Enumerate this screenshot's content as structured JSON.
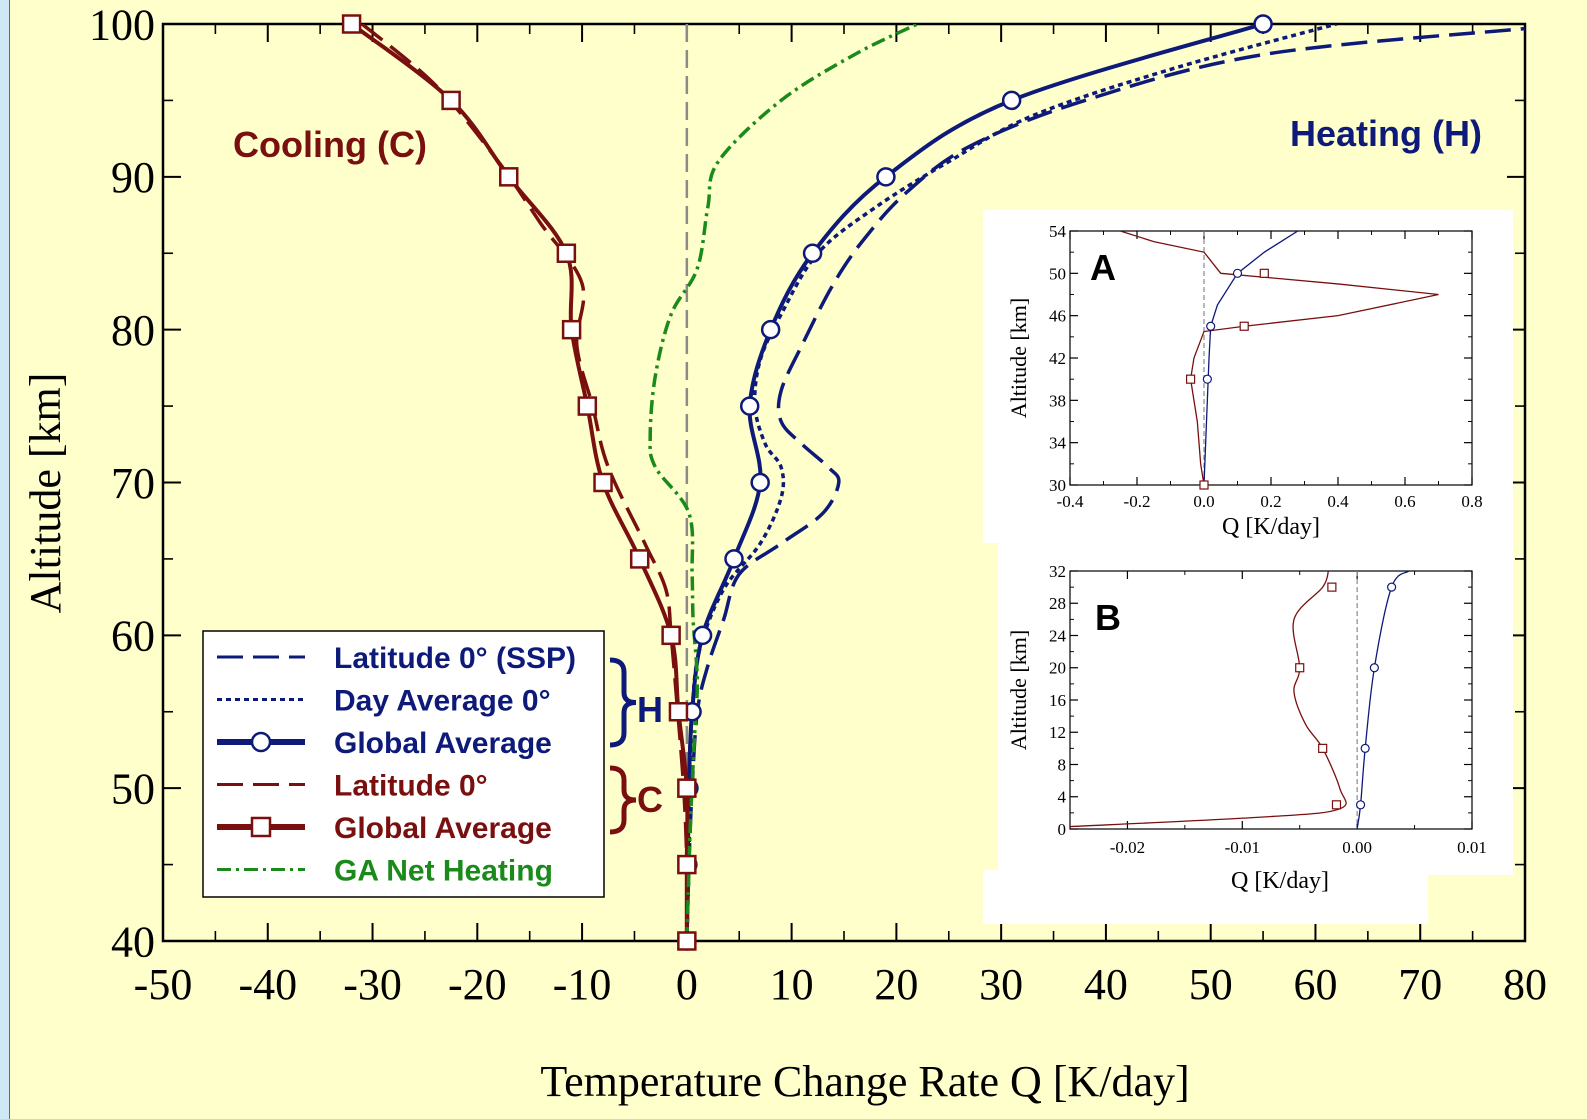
{
  "colors": {
    "background": "#ffffcc",
    "page_edge": "#cfe8f6",
    "heating": "#0d1a7a",
    "cooling": "#7a0f0f",
    "net": "#1a8a1a",
    "zero_line": "#8a8a8a"
  },
  "annotations": {
    "cooling": "Cooling (C)",
    "heating": "Heating (H)",
    "brace_h": "H",
    "brace_c": "C"
  },
  "chart_data": [
    {
      "type": "line",
      "xlabel": "Temperature Change Rate Q [K/day]",
      "ylabel": "Altitude [km]",
      "xlim": [
        -50,
        80
      ],
      "ylim": [
        40,
        100
      ],
      "xticks": [
        -50,
        -40,
        -30,
        -20,
        -10,
        0,
        10,
        20,
        30,
        40,
        50,
        60,
        70,
        80
      ],
      "yticks": [
        40,
        50,
        60,
        70,
        80,
        90,
        100
      ],
      "legend_position": "bottom-left",
      "grid": false,
      "series": [
        {
          "name": "Latitude 0° (SSP)",
          "style": "long-dash",
          "color": "#0d1a7a",
          "marker": "none",
          "points": [
            [
              0,
              40
            ],
            [
              0.2,
              45
            ],
            [
              0.5,
              50
            ],
            [
              1,
              55
            ],
            [
              2,
              58
            ],
            [
              3.5,
              61
            ],
            [
              5,
              64
            ],
            [
              9,
              66
            ],
            [
              13,
              68
            ],
            [
              14.5,
              70
            ],
            [
              13.5,
              71
            ],
            [
              11,
              72.5
            ],
            [
              9,
              74
            ],
            [
              9,
              76
            ],
            [
              11,
              79
            ],
            [
              14,
              83
            ],
            [
              17,
              86
            ],
            [
              21,
              89
            ],
            [
              27,
              92
            ],
            [
              38,
              95
            ],
            [
              55,
              98
            ],
            [
              80,
              99.7
            ]
          ]
        },
        {
          "name": "Day Average 0°",
          "style": "dotted",
          "color": "#0d1a7a",
          "marker": "none",
          "points": [
            [
              0,
              40
            ],
            [
              0.2,
              45
            ],
            [
              0.3,
              50
            ],
            [
              0.5,
              55
            ],
            [
              1.2,
              59
            ],
            [
              3.5,
              63
            ],
            [
              7,
              66
            ],
            [
              9,
              69
            ],
            [
              9,
              71
            ],
            [
              7.5,
              72.5
            ],
            [
              6.5,
              75
            ],
            [
              7,
              78
            ],
            [
              9,
              81
            ],
            [
              12.5,
              85
            ],
            [
              18,
              88
            ],
            [
              25,
              91
            ],
            [
              33,
              94
            ],
            [
              46,
              97
            ],
            [
              62,
              100
            ]
          ]
        },
        {
          "name": "Global Average",
          "style": "solid",
          "color": "#0d1a7a",
          "marker": "circle",
          "points": [
            [
              0,
              40
            ],
            [
              0.1,
              45
            ],
            [
              0.2,
              50
            ],
            [
              0.5,
              55
            ],
            [
              1.5,
              60
            ],
            [
              4.5,
              65
            ],
            [
              7,
              70
            ],
            [
              6,
              75
            ],
            [
              8,
              80
            ],
            [
              12,
              85
            ],
            [
              19,
              90
            ],
            [
              31,
              95
            ],
            [
              55,
              100
            ]
          ]
        },
        {
          "name": "Latitude 0°",
          "style": "long-dash",
          "color": "#7a0f0f",
          "marker": "none",
          "points": [
            [
              -31,
              100
            ],
            [
              -24,
              96
            ],
            [
              -18,
              91
            ],
            [
              -14,
              87
            ],
            [
              -10,
              83
            ],
            [
              -10.5,
              79
            ],
            [
              -9,
              75
            ],
            [
              -7.5,
              71
            ],
            [
              -4,
              66
            ],
            [
              -2,
              63
            ],
            [
              -1.5,
              60
            ],
            [
              -1,
              56
            ],
            [
              -0.3,
              50
            ],
            [
              0,
              45
            ],
            [
              0,
              40
            ]
          ]
        },
        {
          "name": "Global Average",
          "style": "solid",
          "color": "#7a0f0f",
          "marker": "square",
          "points": [
            [
              -32,
              100
            ],
            [
              -22.5,
              95
            ],
            [
              -17,
              90
            ],
            [
              -11.5,
              85
            ],
            [
              -11,
              80
            ],
            [
              -9.5,
              75
            ],
            [
              -8,
              70
            ],
            [
              -4.5,
              65
            ],
            [
              -1.5,
              60
            ],
            [
              -0.8,
              55
            ],
            [
              0,
              50
            ],
            [
              0,
              45
            ],
            [
              0,
              40
            ]
          ]
        },
        {
          "name": "GA Net Heating",
          "style": "dash-dot",
          "color": "#1a8a1a",
          "marker": "none",
          "points": [
            [
              0,
              40
            ],
            [
              0.3,
              47
            ],
            [
              0.7,
              53
            ],
            [
              1,
              57
            ],
            [
              0.6,
              61
            ],
            [
              0.5,
              64
            ],
            [
              0.2,
              68
            ],
            [
              -3,
              71
            ],
            [
              -3.5,
              73
            ],
            [
              -3,
              77
            ],
            [
              -1.5,
              81
            ],
            [
              1,
              84
            ],
            [
              2,
              88
            ],
            [
              3,
              91
            ],
            [
              9,
              95
            ],
            [
              16,
              98
            ],
            [
              22,
              100
            ]
          ]
        }
      ]
    },
    {
      "type": "line",
      "panel_label": "A",
      "xlabel": "Q [K/day]",
      "ylabel": "Altitude [km]",
      "xlim": [
        -0.4,
        0.8
      ],
      "ylim": [
        30,
        54
      ],
      "xticks": [
        "-0.4",
        "-0.2",
        "0.0",
        "0.2",
        "0.4",
        "0.6",
        "0.8"
      ],
      "yticks": [
        30,
        34,
        38,
        42,
        46,
        50,
        54
      ],
      "series": [
        {
          "color": "#0d1a7a",
          "marker": "circle",
          "points": [
            [
              0.0,
              30
            ],
            [
              0.005,
              34
            ],
            [
              0.01,
              38
            ],
            [
              0.015,
              42
            ],
            [
              0.02,
              45
            ],
            [
              0.04,
              47
            ],
            [
              0.1,
              50
            ],
            [
              0.18,
              52
            ],
            [
              0.28,
              54
            ]
          ],
          "marker_points": [
            [
              0.0,
              30
            ],
            [
              0.01,
              40
            ],
            [
              0.02,
              45
            ],
            [
              0.1,
              50
            ]
          ]
        },
        {
          "color": "#7a0f0f",
          "marker": "square",
          "points": [
            [
              -0.25,
              54
            ],
            [
              -0.15,
              53
            ],
            [
              0.0,
              52
            ],
            [
              0.05,
              50
            ],
            [
              0.4,
              49
            ],
            [
              0.7,
              48
            ],
            [
              0.4,
              46
            ],
            [
              0.12,
              45
            ],
            [
              0.0,
              44.5
            ],
            [
              -0.03,
              42
            ],
            [
              -0.04,
              40
            ],
            [
              -0.02,
              36
            ],
            [
              -0.01,
              32
            ],
            [
              0.0,
              30
            ]
          ],
          "marker_points": [
            [
              0.0,
              30
            ],
            [
              -0.04,
              40
            ],
            [
              0.12,
              45
            ],
            [
              0.18,
              50
            ]
          ]
        }
      ]
    },
    {
      "type": "line",
      "panel_label": "B",
      "xlabel": "Q [K/day]",
      "ylabel": "Altitude [km]",
      "xlim": [
        -0.025,
        0.01
      ],
      "ylim": [
        0,
        32
      ],
      "xticks": [
        "-0.02",
        "-0.01",
        "0.00",
        "0.01"
      ],
      "yticks": [
        0,
        4,
        8,
        12,
        16,
        20,
        24,
        28,
        32
      ],
      "series": [
        {
          "color": "#0d1a7a",
          "marker": "circle",
          "points": [
            [
              0.0,
              0
            ],
            [
              0.0003,
              3
            ],
            [
              0.0007,
              10
            ],
            [
              0.0015,
              20
            ],
            [
              0.003,
              30
            ],
            [
              0.0045,
              32
            ]
          ],
          "marker_points": [
            [
              0.0003,
              3
            ],
            [
              0.0007,
              10
            ],
            [
              0.0015,
              20
            ],
            [
              0.003,
              30
            ]
          ]
        },
        {
          "color": "#7a0f0f",
          "marker": "square",
          "points": [
            [
              -0.025,
              0.3
            ],
            [
              -0.008,
              1.5
            ],
            [
              -0.0015,
              2.5
            ],
            [
              -0.0015,
              5
            ],
            [
              -0.003,
              10
            ],
            [
              -0.0045,
              13
            ],
            [
              -0.0055,
              17
            ],
            [
              -0.005,
              20
            ],
            [
              -0.0055,
              26
            ],
            [
              -0.003,
              30
            ],
            [
              -0.0025,
              32
            ]
          ],
          "marker_points": [
            [
              -0.0018,
              3
            ],
            [
              -0.003,
              10
            ],
            [
              -0.005,
              20
            ],
            [
              -0.0022,
              30
            ]
          ]
        }
      ]
    }
  ]
}
